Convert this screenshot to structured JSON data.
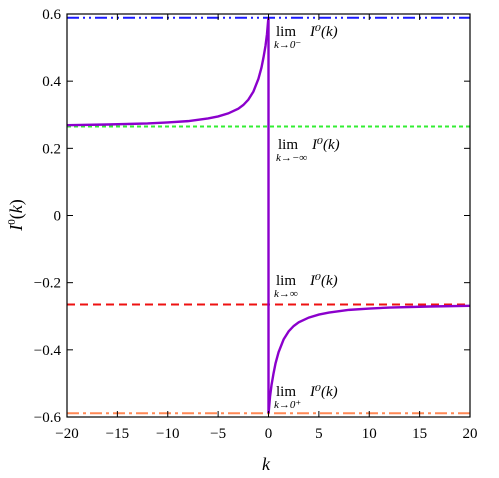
{
  "chart_data": {
    "type": "line",
    "title": "",
    "xlabel": "k",
    "ylabel": "I^0(k)",
    "xlim": [
      -20,
      20
    ],
    "ylim": [
      -0.6,
      0.6
    ],
    "x_ticks": [
      -20,
      -15,
      -10,
      -5,
      0,
      5,
      10,
      15,
      20
    ],
    "x_tick_labels": [
      "−20",
      "−15",
      "−10",
      "−5",
      "0",
      "5",
      "10",
      "15",
      "20"
    ],
    "y_ticks": [
      0.6,
      0.4,
      0.2,
      0,
      -0.2,
      -0.4,
      -0.6
    ],
    "y_tick_labels": [
      "0.6",
      "0.4",
      "0.2",
      "0",
      "−0.2",
      "−0.4",
      "−0.6"
    ],
    "grid": false,
    "series": [
      {
        "color": "#8b00cc",
        "style": "solid",
        "x": [
          -20,
          -16,
          -12,
          -10,
          -8,
          -6,
          -5,
          -4,
          -3,
          -2.5,
          -2,
          -1.5,
          -1,
          -0.7,
          -0.5,
          -0.3,
          -0.15,
          -0.05,
          -0.01
        ],
        "y": [
          0.269,
          0.271,
          0.274,
          0.277,
          0.281,
          0.289,
          0.295,
          0.304,
          0.318,
          0.329,
          0.345,
          0.369,
          0.407,
          0.44,
          0.47,
          0.505,
          0.54,
          0.575,
          0.588
        ]
      },
      {
        "color": "#8b00cc",
        "style": "solid",
        "x": [
          0.01,
          0.05,
          0.15,
          0.3,
          0.5,
          0.7,
          1,
          1.5,
          2,
          2.5,
          3,
          4,
          5,
          6,
          8,
          10,
          12,
          16,
          20
        ],
        "y": [
          -0.588,
          -0.575,
          -0.54,
          -0.505,
          -0.47,
          -0.44,
          -0.407,
          -0.369,
          -0.345,
          -0.329,
          -0.318,
          -0.304,
          -0.295,
          -0.289,
          -0.281,
          -0.277,
          -0.274,
          -0.271,
          -0.269
        ]
      }
    ],
    "reference_lines": [
      {
        "id": "lim-0-minus",
        "y": 0.589,
        "color": "#1a1aff",
        "style": "dash-dot-dot"
      },
      {
        "id": "lim-neg-inf",
        "y": 0.265,
        "color": "#33ee33",
        "style": "dotted"
      },
      {
        "id": "lim-pos-inf",
        "y": -0.265,
        "color": "#ee1111",
        "style": "dashed"
      },
      {
        "id": "lim-0-plus",
        "y": -0.589,
        "color": "#ff8855",
        "style": "dash-dot"
      }
    ],
    "annotations": [
      {
        "id": "annot-lim-0-minus",
        "lim": "lim",
        "sub": "k→0⁻",
        "fn": "I⁰(k)"
      },
      {
        "id": "annot-lim-neg-inf",
        "lim": "lim",
        "sub": "k→−∞",
        "fn": "I⁰(k)"
      },
      {
        "id": "annot-lim-pos-inf",
        "lim": "lim",
        "sub": "k→∞",
        "fn": "I⁰(k)"
      },
      {
        "id": "annot-lim-0-plus",
        "lim": "lim",
        "sub": "k→0⁺",
        "fn": "I⁰(k)"
      }
    ]
  }
}
